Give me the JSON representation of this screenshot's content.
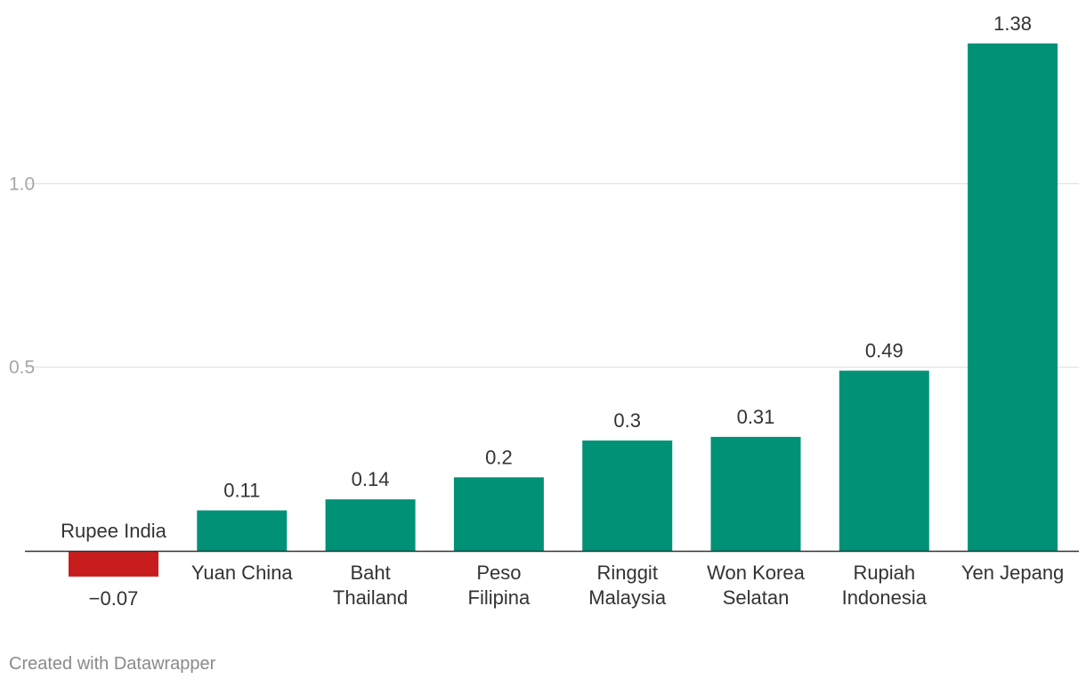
{
  "chart_data": {
    "type": "bar",
    "categories": [
      "Rupee India",
      "Yuan China",
      "Baht Thailand",
      "Peso Filipina",
      "Ringgit Malaysia",
      "Won Korea Selatan",
      "Rupiah Indonesia",
      "Yen Jepang"
    ],
    "category_lines": [
      [
        "Rupee India"
      ],
      [
        "Yuan China"
      ],
      [
        "Baht",
        "Thailand"
      ],
      [
        "Peso",
        "Filipina"
      ],
      [
        "Ringgit",
        "Malaysia"
      ],
      [
        "Won Korea",
        "Selatan"
      ],
      [
        "Rupiah",
        "Indonesia"
      ],
      [
        "Yen Jepang"
      ]
    ],
    "values": [
      -0.07,
      0.11,
      0.14,
      0.2,
      0.3,
      0.31,
      0.49,
      1.38
    ],
    "value_labels": [
      "−0.07",
      "0.11",
      "0.14",
      "0.2",
      "0.3",
      "0.31",
      "0.49",
      "1.38"
    ],
    "yticks": [
      0.5,
      1.0
    ],
    "ytick_labels": [
      "0.5",
      "1.0"
    ],
    "ylim": [
      -0.07,
      1.38
    ],
    "grid": true,
    "colors": {
      "positive": "#009177",
      "negative": "#c71e1d",
      "grid": "#e0e0e0",
      "tick_text": "#a6a6a6",
      "text": "#333333",
      "axis": "#333333"
    },
    "title": "",
    "xlabel": "",
    "ylabel": ""
  },
  "footer": {
    "credit": "Created with Datawrapper"
  }
}
